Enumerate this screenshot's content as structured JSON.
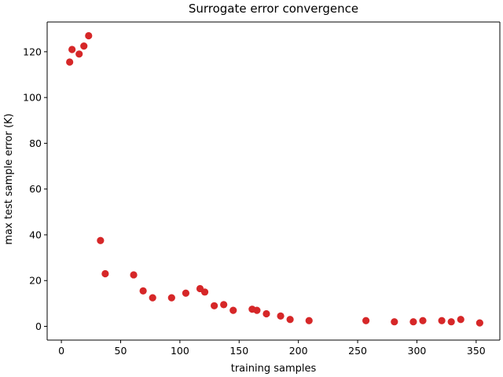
{
  "chart_data": {
    "type": "scatter",
    "title": "Surrogate error convergence",
    "xlabel": "training samples",
    "ylabel": "max test sample error (K)",
    "xlim": [
      -12,
      370
    ],
    "ylim": [
      -6,
      133
    ],
    "xticks": [
      0,
      50,
      100,
      150,
      200,
      250,
      300,
      350
    ],
    "yticks": [
      0,
      20,
      40,
      60,
      80,
      100,
      120
    ],
    "grid": false,
    "marker_color": "#d62728",
    "series": [
      {
        "x": [
          7,
          9,
          15,
          19,
          23,
          33,
          37,
          61,
          69,
          77,
          93,
          105,
          117,
          121,
          129,
          137,
          145,
          161,
          165,
          173,
          185,
          193,
          209,
          257,
          281,
          297,
          305,
          321,
          329,
          337,
          353
        ],
        "y": [
          115.5,
          121,
          119,
          122.5,
          127,
          37.5,
          23,
          22.5,
          15.5,
          12.5,
          12.5,
          14.5,
          16.5,
          15,
          9,
          9.5,
          7,
          7.5,
          7,
          5.5,
          4.5,
          3,
          2.5,
          2.5,
          2,
          2,
          2.5,
          2.5,
          2,
          3,
          1.5
        ]
      }
    ]
  }
}
